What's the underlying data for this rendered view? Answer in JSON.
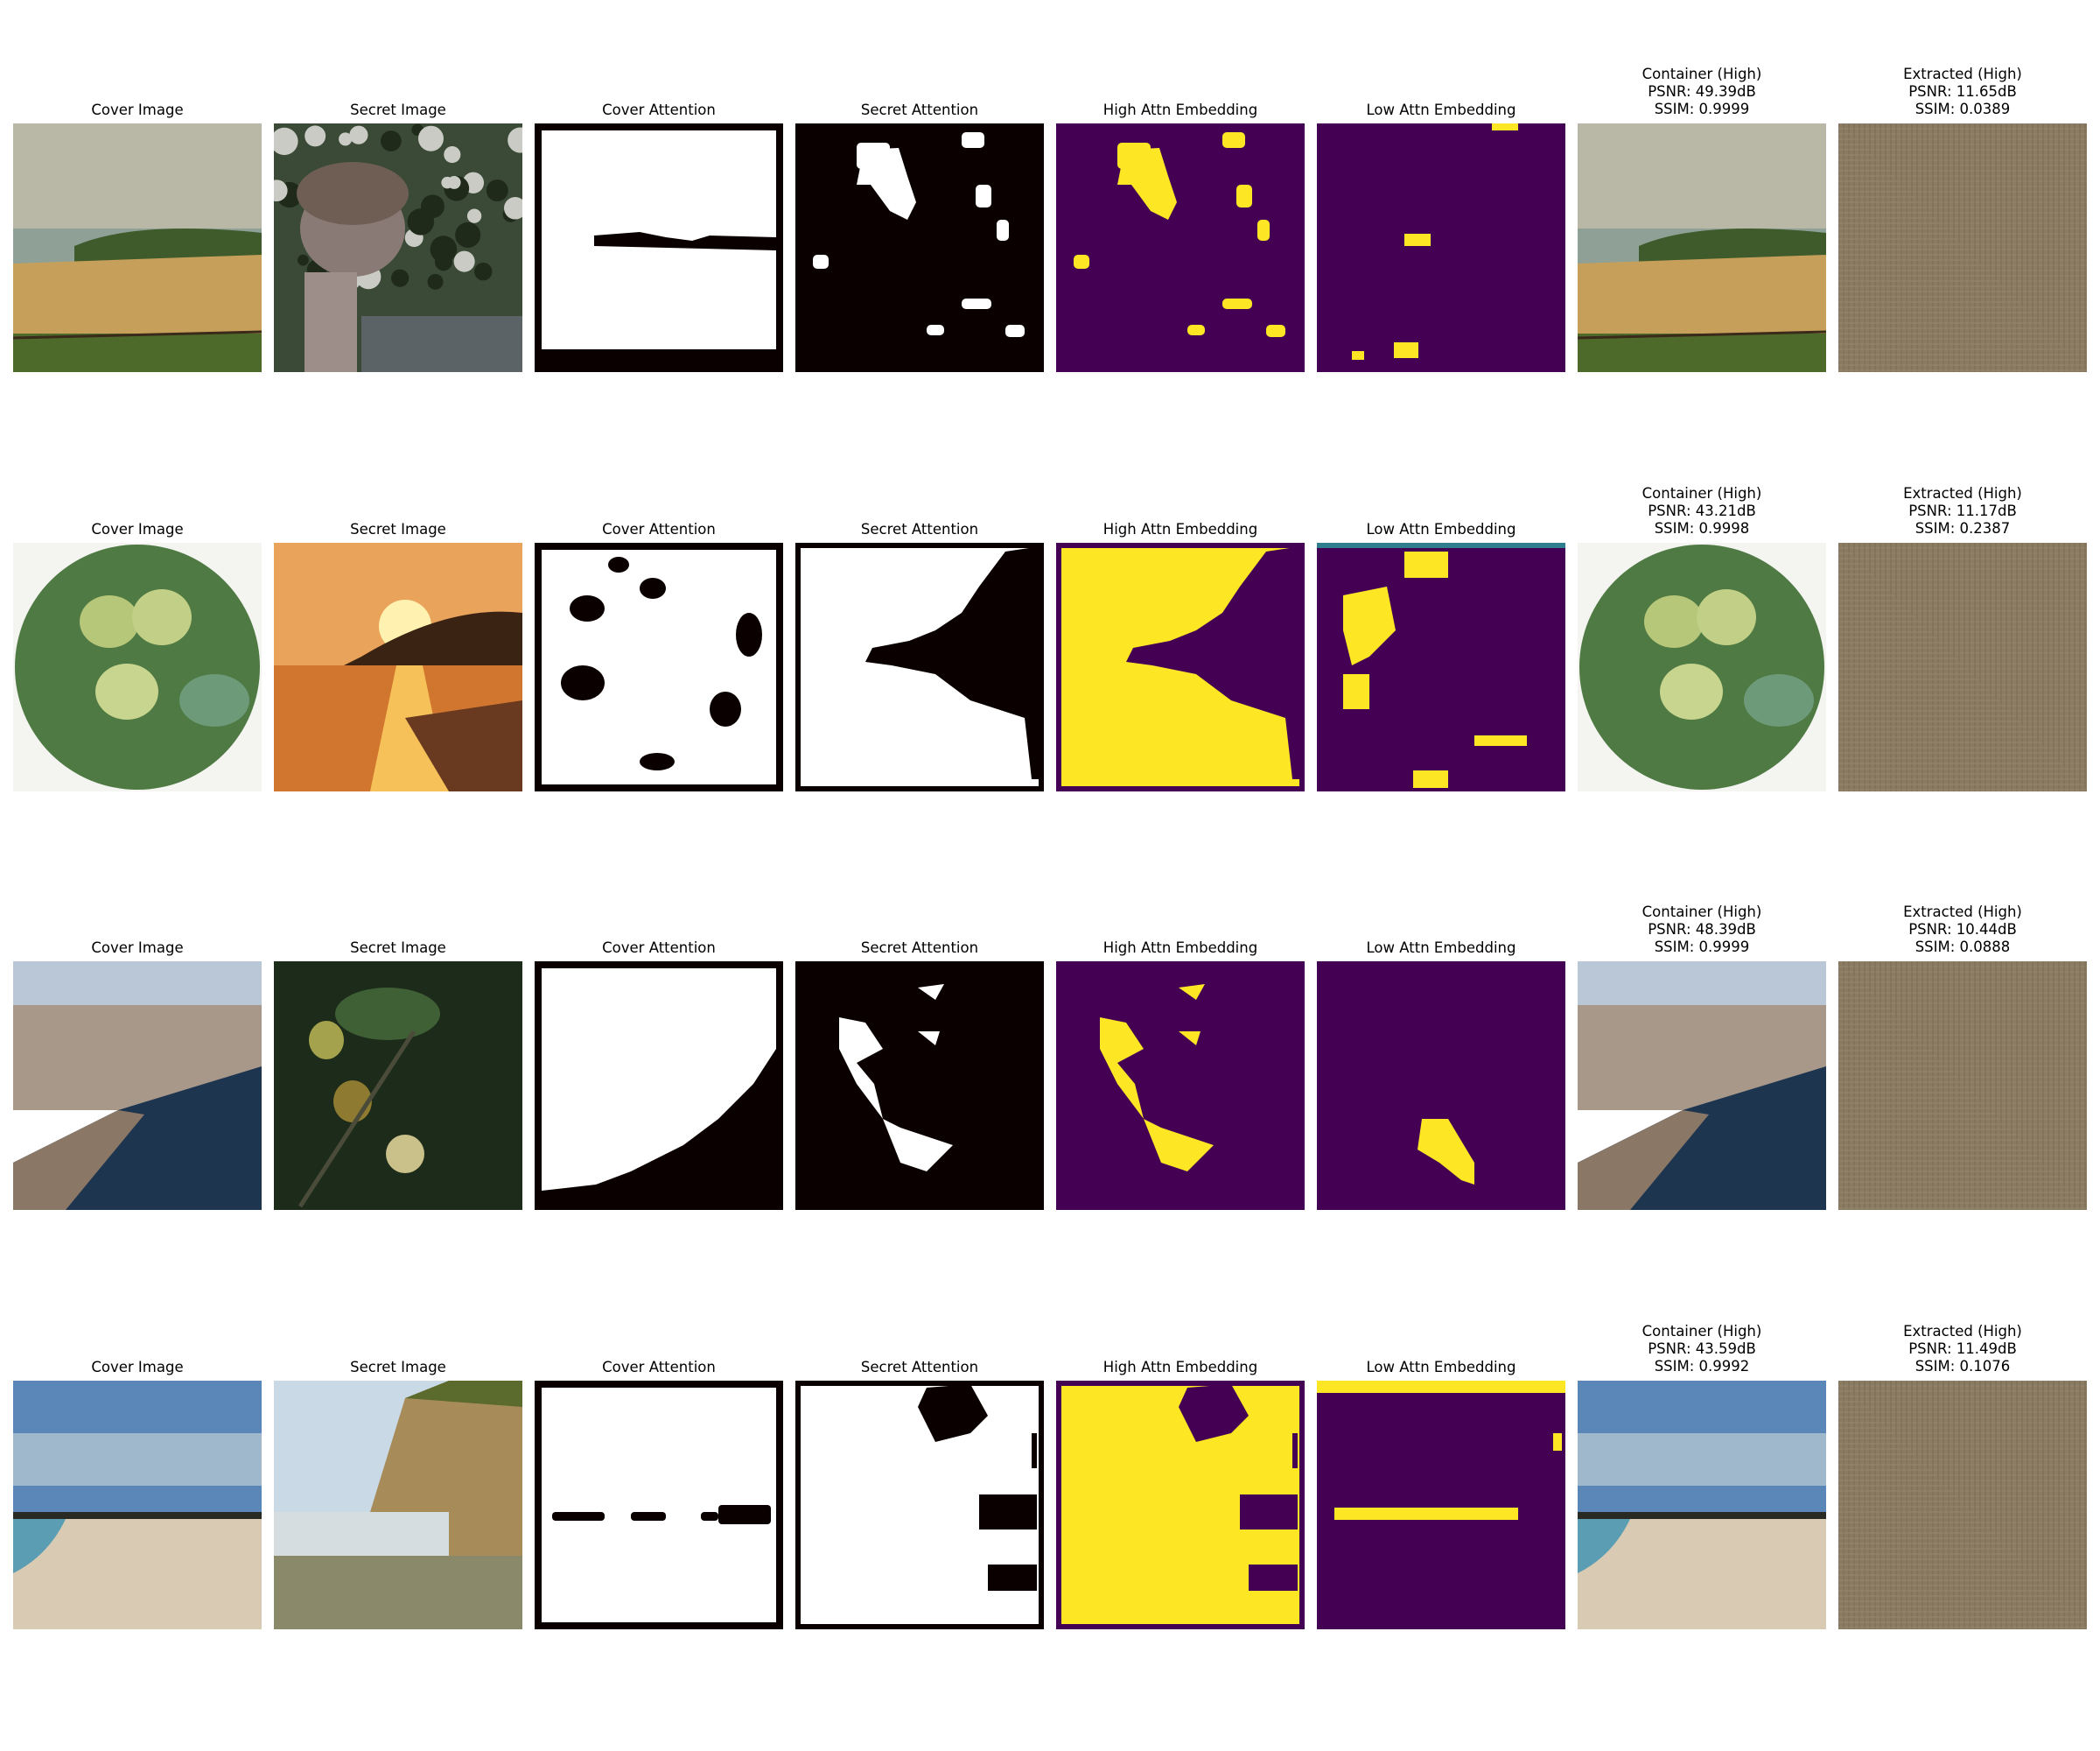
{
  "figure": {
    "rows": [
      {
        "titles": [
          "Cover Image",
          "Secret Image",
          "Cover Attention",
          "Secret Attention",
          "High Attn Embedding",
          "Low Attn Embedding"
        ],
        "container": {
          "label": "Container (High)",
          "psnr": "PSNR: 49.39dB",
          "ssim": "SSIM: 0.9999"
        },
        "extracted": {
          "label": "Extracted (High)",
          "psnr": "PSNR: 11.65dB",
          "ssim": "SSIM: 0.0389"
        },
        "cover_scene": "coastal beach with fence",
        "secret_scene": "acorn sculpture in front of trees"
      },
      {
        "titles": [
          "Cover Image",
          "Secret Image",
          "Cover Attention",
          "Secret Attention",
          "High Attn Embedding",
          "Low Attn Embedding"
        ],
        "container": {
          "label": "Container (High)",
          "psnr": "PSNR: 43.21dB",
          "ssim": "SSIM: 0.9998"
        },
        "extracted": {
          "label": "Extracted (High)",
          "psnr": "PSNR: 11.17dB",
          "ssim": "SSIM: 0.2387"
        },
        "cover_scene": "green acorns in circular vignette",
        "secret_scene": "orange sunset over water"
      },
      {
        "titles": [
          "Cover Image",
          "Secret Image",
          "Cover Attention",
          "Secret Attention",
          "High Attn Embedding",
          "Low Attn Embedding"
        ],
        "container": {
          "label": "Container (High)",
          "psnr": "PSNR: 48.39dB",
          "ssim": "SSIM: 0.9999"
        },
        "extracted": {
          "label": "Extracted (High)",
          "psnr": "PSNR: 10.44dB",
          "ssim": "SSIM: 0.0888"
        },
        "cover_scene": "aerial coastal town and sea",
        "secret_scene": "acorns on branch, dark background"
      },
      {
        "titles": [
          "Cover Image",
          "Secret Image",
          "Cover Attention",
          "Secret Attention",
          "High Attn Embedding",
          "Low Attn Embedding"
        ],
        "container": {
          "label": "Container (High)",
          "psnr": "PSNR: 43.59dB",
          "ssim": "SSIM: 0.9992"
        },
        "extracted": {
          "label": "Extracted (High)",
          "psnr": "PSNR: 11.49dB",
          "ssim": "SSIM: 0.1076"
        },
        "cover_scene": "blue sky over sandy beach",
        "secret_scene": "rocky cliff by the sea"
      }
    ],
    "colors": {
      "viridis_dark": "#440154",
      "viridis_yellow": "#fde725",
      "mask_black": "#0b0000",
      "mask_white": "#ffffff",
      "noise_brown": "#8a7b62"
    }
  }
}
